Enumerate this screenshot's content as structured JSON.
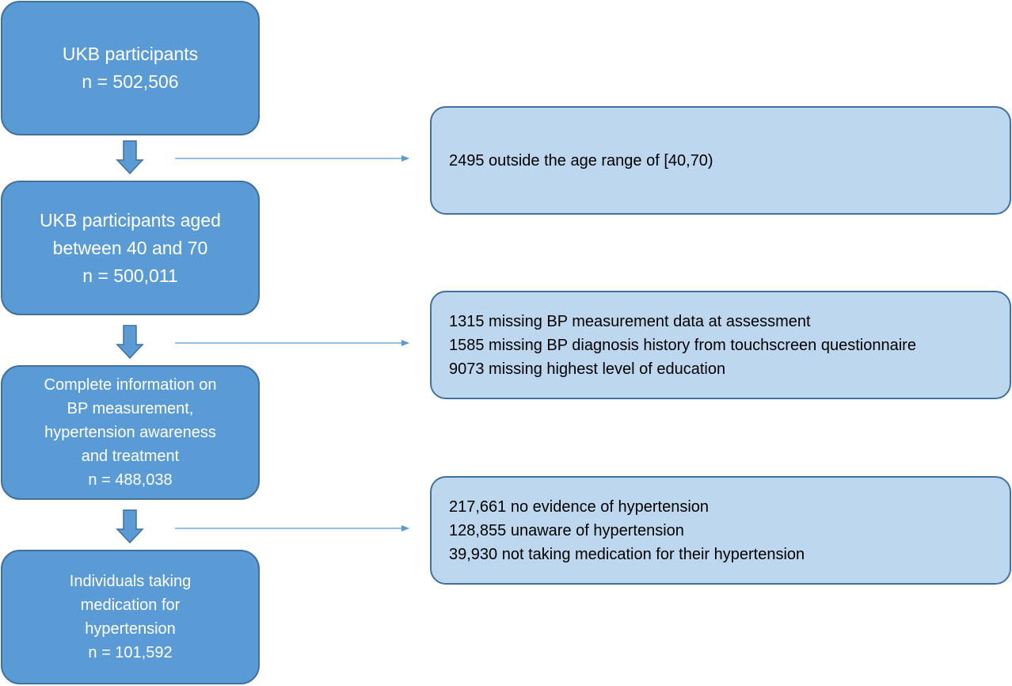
{
  "flow": {
    "steps": [
      {
        "lines": [
          "UKB participants",
          "n = 502,506"
        ]
      },
      {
        "lines": [
          "UKB participants aged",
          "between 40 and 70",
          "n = 500,011"
        ]
      },
      {
        "lines": [
          "Complete information on",
          "BP measurement,",
          "hypertension awareness",
          "and treatment",
          "n = 488,038"
        ]
      },
      {
        "lines": [
          "Individuals taking",
          "medication for",
          "hypertension",
          "n = 101,592"
        ]
      }
    ],
    "exclusions": [
      {
        "lines": [
          "2495 outside the age range of [40,70)"
        ]
      },
      {
        "lines": [
          "1315 missing BP measurement data at assessment",
          "1585 missing BP diagnosis history from touchscreen questionnaire",
          "9073 missing highest level of education"
        ]
      },
      {
        "lines": [
          "217,661 no evidence of hypertension",
          "128,855 unaware of hypertension",
          "39,930 not taking medication for their hypertension"
        ]
      }
    ]
  },
  "colors": {
    "main_fill": "#5b9bd5",
    "main_border": "#41719c",
    "side_fill": "#bdd7ee",
    "arrow": "#5b9bd5"
  },
  "icons": {
    "down_arrow": "block-down-arrow",
    "right_arrow": "thin-right-arrow"
  }
}
